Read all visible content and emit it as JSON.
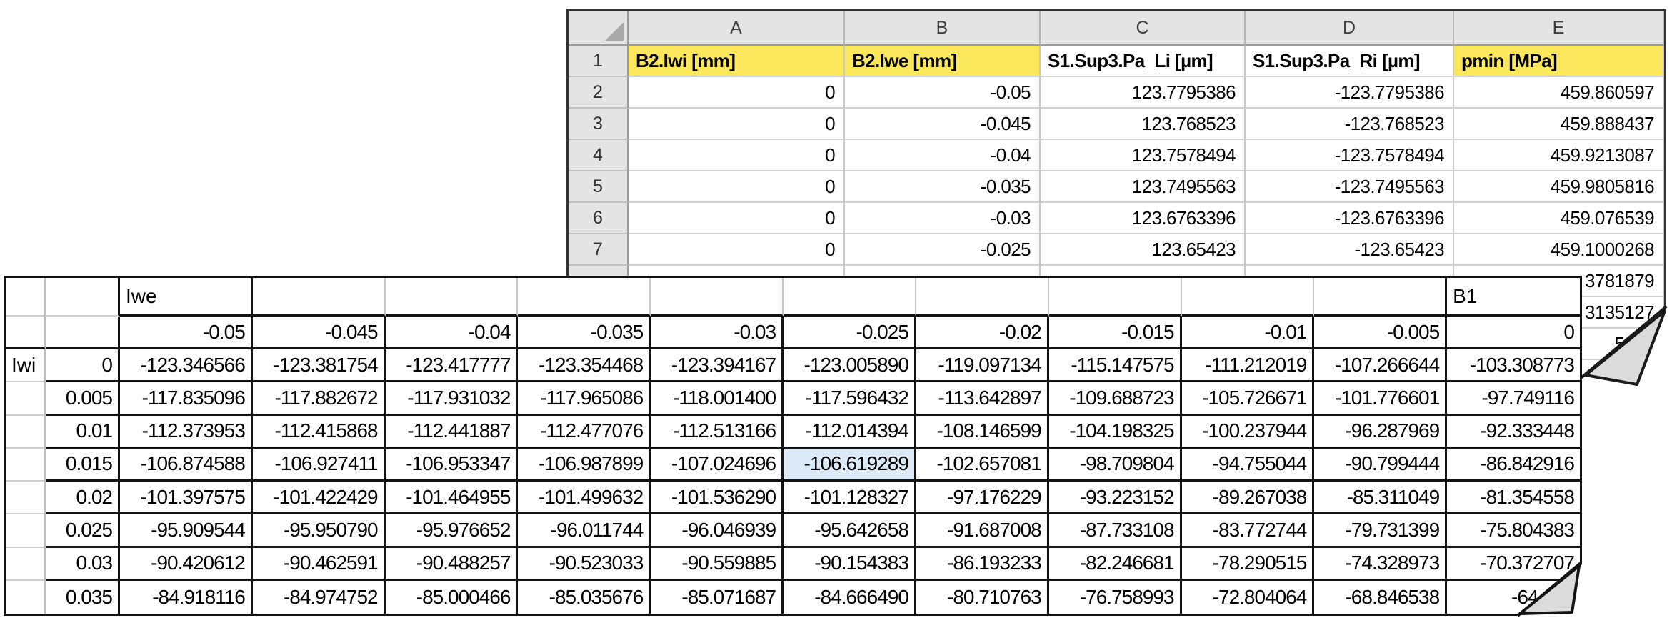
{
  "colors": {
    "header_highlight_yellow": "#FBE75C",
    "selected_cell_blue": "#DCE9F7",
    "grid_line_gray": "#C8C8C8",
    "fold_gray": "#DBDBDB"
  },
  "excel_sheet": {
    "column_letters": [
      "A",
      "B",
      "C",
      "D",
      "E"
    ],
    "row_numbers": [
      "1",
      "2",
      "3",
      "4",
      "5",
      "6",
      "7"
    ],
    "headers": [
      {
        "text": "B2.Iwi [mm]",
        "yellow": true
      },
      {
        "text": "B2.Iwe [mm]",
        "yellow": true
      },
      {
        "text": "S1.Sup3.Pa_Li [µm]",
        "yellow": false
      },
      {
        "text": "S1.Sup3.Pa_Ri [µm]",
        "yellow": false
      },
      {
        "text": "pmin [MPa]",
        "yellow": true
      }
    ],
    "rows": [
      [
        "0",
        "-0.05",
        "123.7795386",
        "-123.7795386",
        "459.860597"
      ],
      [
        "0",
        "-0.045",
        "123.768523",
        "-123.768523",
        "459.888437"
      ],
      [
        "0",
        "-0.04",
        "123.7578494",
        "-123.7578494",
        "459.9213087"
      ],
      [
        "0",
        "-0.035",
        "123.7495563",
        "-123.7495563",
        "459.9805816"
      ],
      [
        "0",
        "-0.03",
        "123.6763396",
        "-123.6763396",
        "459.076539"
      ],
      [
        "0",
        "-0.025",
        "123.65423",
        "-123.65423",
        "459.1000268"
      ]
    ],
    "clipped_pmin_fragments": [
      "3781879",
      "3135127",
      "5007"
    ]
  },
  "matrix_table": {
    "group_header": "Iwe",
    "row_group_header": "Iwi",
    "last_column_header": "B1",
    "iwe_values": [
      "-0.05",
      "-0.045",
      "-0.04",
      "-0.035",
      "-0.03",
      "-0.025",
      "-0.02",
      "-0.015",
      "-0.01",
      "-0.005",
      "0"
    ],
    "iwi_values": [
      "0",
      "0.005",
      "0.01",
      "0.015",
      "0.02",
      "0.025",
      "0.03",
      "0.035"
    ],
    "cells": [
      [
        "-123.346566",
        "-123.381754",
        "-123.417777",
        "-123.354468",
        "-123.394167",
        "-123.005890",
        "-119.097134",
        "-115.147575",
        "-111.212019",
        "-107.266644",
        "-103.308773"
      ],
      [
        "-117.835096",
        "-117.882672",
        "-117.931032",
        "-117.965086",
        "-118.001400",
        "-117.596432",
        "-113.642897",
        "-109.688723",
        "-105.726671",
        "-101.776601",
        "-97.749116"
      ],
      [
        "-112.373953",
        "-112.415868",
        "-112.441887",
        "-112.477076",
        "-112.513166",
        "-112.014394",
        "-108.146599",
        "-104.198325",
        "-100.237944",
        "-96.287969",
        "-92.333448"
      ],
      [
        "-106.874588",
        "-106.927411",
        "-106.953347",
        "-106.987899",
        "-107.024696",
        "-106.619289",
        "-102.657081",
        "-98.709804",
        "-94.755044",
        "-90.799444",
        "-86.842916"
      ],
      [
        "-101.397575",
        "-101.422429",
        "-101.464955",
        "-101.499632",
        "-101.536290",
        "-101.128327",
        "-97.176229",
        "-93.223152",
        "-89.267038",
        "-85.311049",
        "-81.354558"
      ],
      [
        "-95.909544",
        "-95.950790",
        "-95.976652",
        "-96.011744",
        "-96.046939",
        "-95.642658",
        "-91.687008",
        "-87.733108",
        "-83.772744",
        "-79.731399",
        "-75.804383"
      ],
      [
        "-90.420612",
        "-90.462591",
        "-90.488257",
        "-90.523033",
        "-90.559885",
        "-90.154383",
        "-86.193233",
        "-82.246681",
        "-78.290515",
        "-74.328973",
        "-70.372707"
      ],
      [
        "-84.918116",
        "-84.974752",
        "-85.000466",
        "-85.035676",
        "-85.071687",
        "-84.666490",
        "-80.710763",
        "-76.758993",
        "-72.804064",
        "-68.846538",
        "-64.884"
      ]
    ],
    "highlight": {
      "row_index": 3,
      "col_index": 5,
      "value": "-106.619289"
    }
  }
}
